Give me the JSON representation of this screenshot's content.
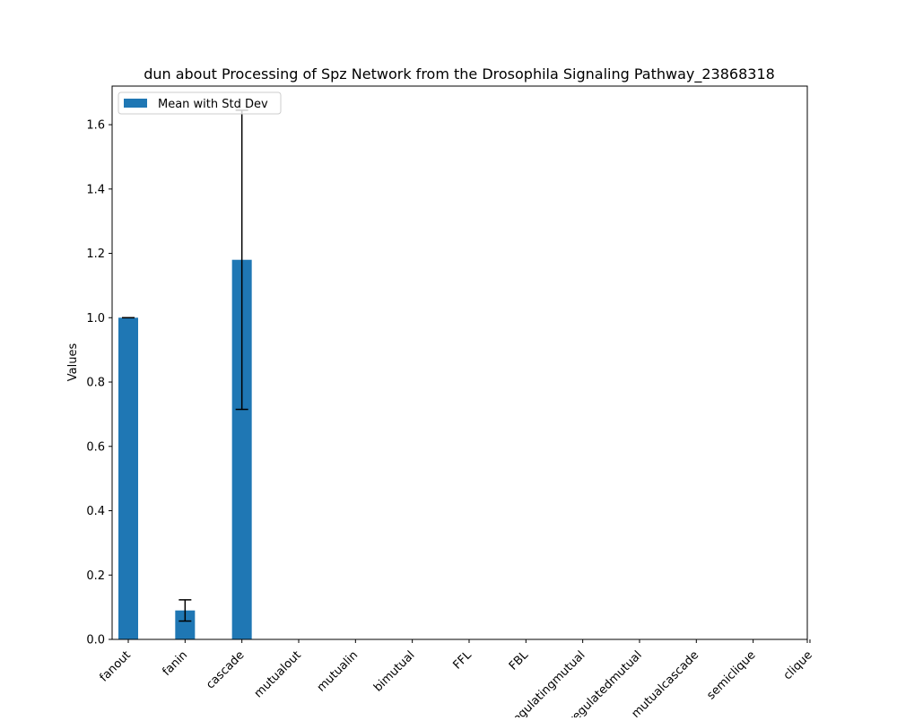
{
  "chart_data": {
    "type": "bar",
    "title": "dun about Processing of Spz Network from the Drosophila Signaling Pathway_23868318",
    "xlabel": "",
    "ylabel": "Values",
    "ylim": [
      0,
      1.72
    ],
    "yticks": [
      0.0,
      0.2,
      0.4,
      0.6,
      0.8,
      1.0,
      1.2,
      1.4,
      1.6
    ],
    "ytick_labels": [
      "0.0",
      "0.2",
      "0.4",
      "0.6",
      "0.8",
      "1.0",
      "1.2",
      "1.4",
      "1.6"
    ],
    "categories": [
      "fanout",
      "fanin",
      "cascade",
      "mutualout",
      "mutualin",
      "bimutual",
      "FFL",
      "FBL",
      "regulatingmutual",
      "regulatedmutual",
      "mutualcascade",
      "semiclique",
      "clique"
    ],
    "values": [
      1.0,
      0.09,
      1.18,
      0,
      0,
      0,
      0,
      0,
      0,
      0,
      0,
      0,
      0
    ],
    "errors": [
      0.0,
      0.033,
      0.465,
      0,
      0,
      0,
      0,
      0,
      0,
      0,
      0,
      0,
      0
    ],
    "series": [
      {
        "name": "Mean with Std Dev",
        "color": "#1f77b4"
      }
    ],
    "legend_position": "top-left",
    "grid": false,
    "bar_color": "#1f77b4",
    "error_color": "#000000"
  }
}
